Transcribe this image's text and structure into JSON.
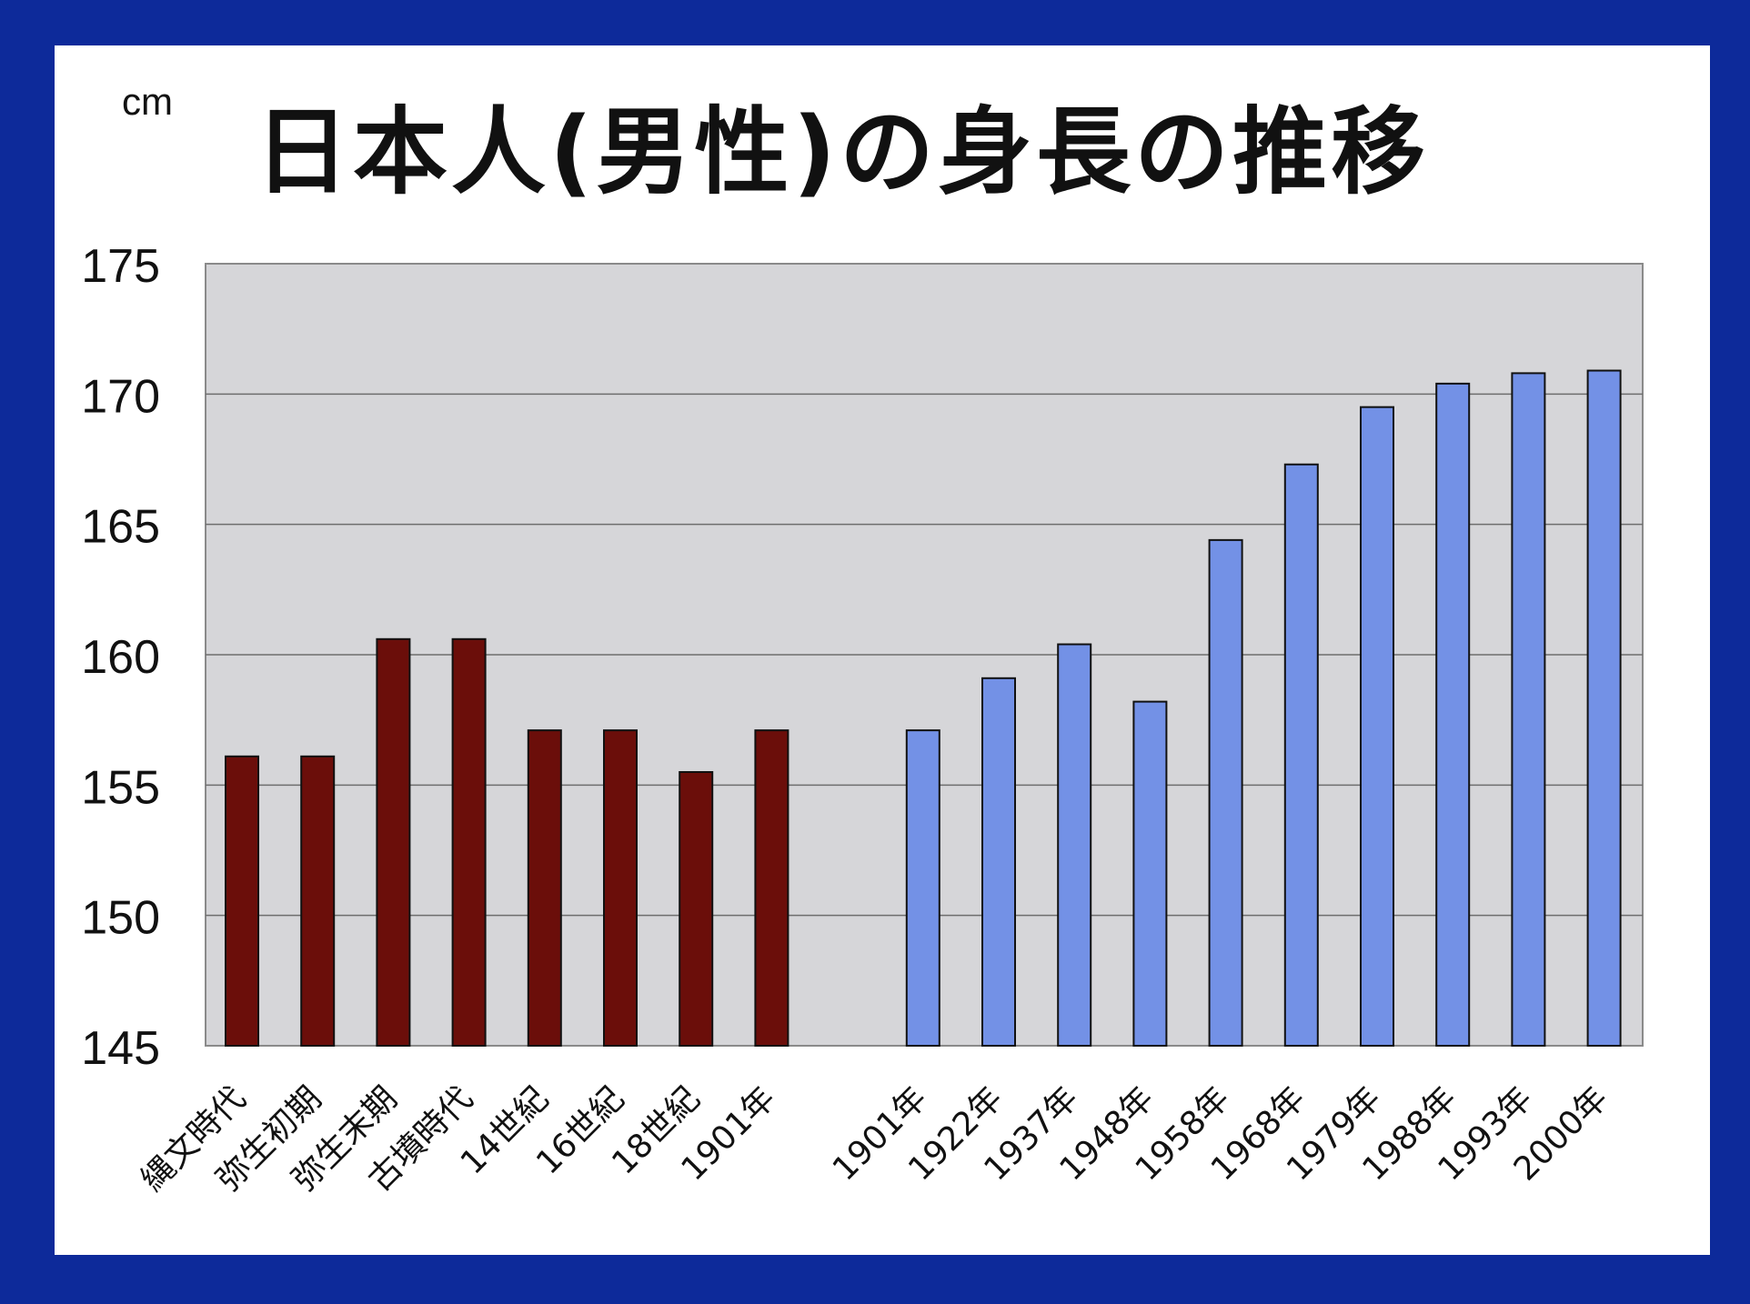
{
  "chart_data": {
    "type": "bar",
    "title": "日本人(男性)の身長の推移",
    "unit_label": "cm",
    "ylim": [
      145,
      175
    ],
    "yticks": [
      145,
      150,
      155,
      160,
      165,
      170,
      175
    ],
    "grid": true,
    "categories": [
      "縄文時代",
      "弥生初期",
      "弥生末期",
      "古墳時代",
      "14世紀",
      "16世紀",
      "18世紀",
      "1901年",
      "",
      "1901年",
      "1922年",
      "1937年",
      "1948年",
      "1958年",
      "1968年",
      "1979年",
      "1988年",
      "1993年",
      "2000年"
    ],
    "values": [
      156.1,
      156.1,
      160.6,
      160.6,
      157.1,
      157.1,
      155.5,
      157.1,
      null,
      157.1,
      159.1,
      160.4,
      158.2,
      164.4,
      167.3,
      169.5,
      170.4,
      170.8,
      170.9
    ],
    "colors": {
      "historical": "#6b0e0a",
      "modern": "#7391e6",
      "plot_bg": "#d6d6d9",
      "frame": "#0d2a9a"
    }
  }
}
